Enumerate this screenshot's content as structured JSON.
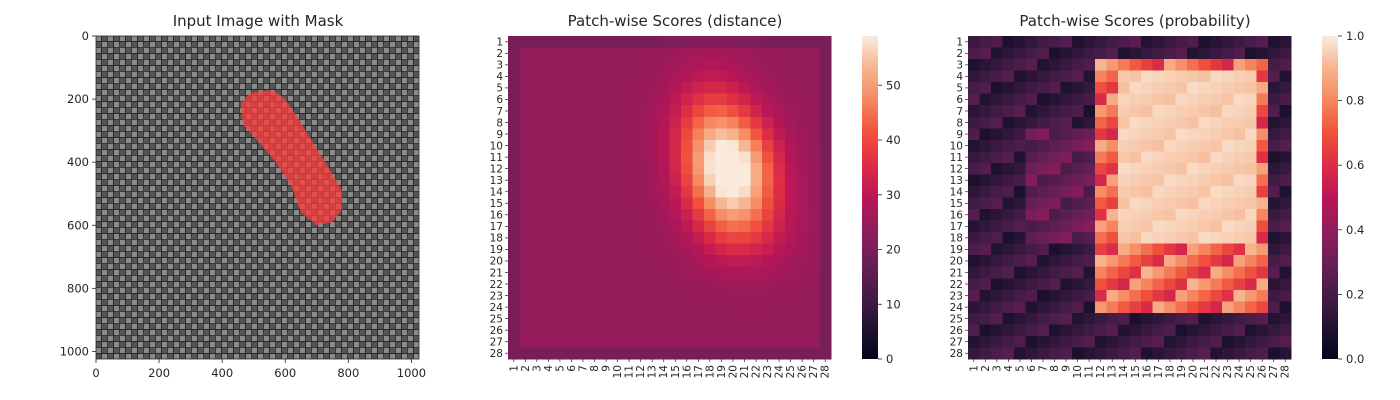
{
  "panels": [
    {
      "title": "Input Image with Mask"
    },
    {
      "title": "Patch-wise Scores (distance)"
    },
    {
      "title": "Patch-wise Scores (probability)"
    }
  ],
  "chart_data": [
    {
      "type": "image",
      "title": "Input Image with Mask",
      "xlim": [
        0,
        1024
      ],
      "ylim": [
        1024,
        0
      ],
      "xticks": [
        0,
        200,
        400,
        600,
        800,
        1000
      ],
      "yticks": [
        0,
        200,
        400,
        600,
        800,
        1000
      ],
      "texture": "dark gray woven fabric",
      "texture_color": "#5c5c5c",
      "mask_color": "#ff3b3b",
      "mask_region_polygon": [
        [
          460,
          210
        ],
        [
          490,
          180
        ],
        [
          560,
          170
        ],
        [
          600,
          200
        ],
        [
          640,
          260
        ],
        [
          690,
          340
        ],
        [
          740,
          420
        ],
        [
          780,
          490
        ],
        [
          780,
          550
        ],
        [
          750,
          590
        ],
        [
          700,
          600
        ],
        [
          650,
          560
        ],
        [
          620,
          480
        ],
        [
          570,
          400
        ],
        [
          510,
          330
        ],
        [
          465,
          280
        ]
      ]
    },
    {
      "type": "heatmap",
      "title": "Patch-wise Scores (distance)",
      "xlabels": [
        "1",
        "2",
        "3",
        "4",
        "5",
        "6",
        "7",
        "8",
        "9",
        "10",
        "11",
        "12",
        "13",
        "14",
        "15",
        "16",
        "17",
        "18",
        "19",
        "20",
        "21",
        "22",
        "23",
        "24",
        "25",
        "26",
        "27",
        "28"
      ],
      "ylabels": [
        "1",
        "2",
        "3",
        "4",
        "5",
        "6",
        "7",
        "8",
        "9",
        "10",
        "11",
        "12",
        "13",
        "14",
        "15",
        "16",
        "17",
        "18",
        "19",
        "20",
        "21",
        "22",
        "23",
        "24",
        "25",
        "26",
        "27",
        "28"
      ],
      "colormap": "rocket",
      "vmin": 0,
      "vmax": 59,
      "colorbar_ticks": [
        0,
        10,
        20,
        30,
        40,
        50
      ],
      "background_value": 24,
      "hotspots": [
        {
          "row": 12.5,
          "col": 20,
          "peak": 34,
          "sigma_row": 3.2,
          "sigma_col": 2.6
        },
        {
          "row": 8.5,
          "col": 18,
          "peak": 14,
          "sigma_row": 3.5,
          "sigma_col": 2.5
        },
        {
          "row": 17.5,
          "col": 21,
          "peak": 8,
          "sigma_row": 2.5,
          "sigma_col": 3.0
        }
      ]
    },
    {
      "type": "heatmap",
      "title": "Patch-wise Scores (probability)",
      "xlabels": [
        "1",
        "2",
        "3",
        "4",
        "5",
        "6",
        "7",
        "8",
        "9",
        "10",
        "11",
        "12",
        "13",
        "14",
        "15",
        "16",
        "17",
        "18",
        "19",
        "20",
        "21",
        "22",
        "23",
        "24",
        "25",
        "26",
        "27",
        "28"
      ],
      "ylabels": [
        "1",
        "2",
        "3",
        "4",
        "5",
        "6",
        "7",
        "8",
        "9",
        "10",
        "11",
        "12",
        "13",
        "14",
        "15",
        "16",
        "17",
        "18",
        "19",
        "20",
        "21",
        "22",
        "23",
        "24",
        "25",
        "26",
        "27",
        "28"
      ],
      "colormap": "rocket",
      "vmin": 0,
      "vmax": 1,
      "colorbar_ticks": [
        0.0,
        0.2,
        0.4,
        0.6,
        0.8,
        1.0
      ],
      "colorbar_tick_labels": [
        "0.0",
        "0.2",
        "0.4",
        "0.6",
        "0.8",
        "1.0"
      ],
      "high_region": {
        "row_start": 3,
        "row_end": 24,
        "col_start": 12,
        "col_end": 26,
        "value": 0.9
      },
      "core_region": {
        "row_start": 4,
        "row_end": 18,
        "col_start": 14,
        "col_end": 25,
        "value": 0.97
      },
      "background_value": 0.08
    }
  ]
}
